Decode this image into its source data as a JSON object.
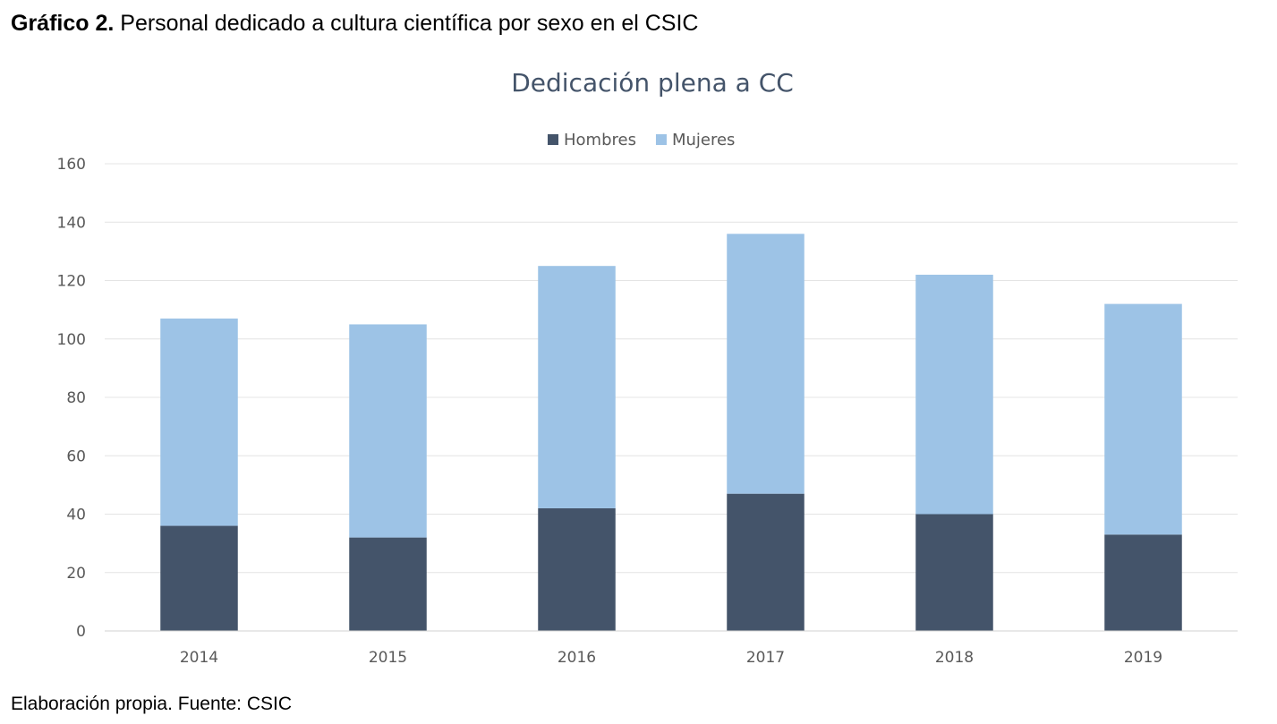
{
  "caption": {
    "label": "Gráfico 2.",
    "text": "Personal dedicado a cultura científica por sexo en el CSIC"
  },
  "source_note": "Elaboración propia. Fuente: CSIC",
  "chart_data": {
    "type": "bar",
    "stacked": true,
    "title": "Dedicación plena a CC",
    "xlabel": "",
    "ylabel": "",
    "categories": [
      "2014",
      "2015",
      "2016",
      "2017",
      "2018",
      "2019"
    ],
    "series": [
      {
        "name": "Hombres",
        "color": "#44546A",
        "values": [
          36,
          32,
          42,
          47,
          40,
          33
        ]
      },
      {
        "name": "Mujeres",
        "color": "#9DC3E6",
        "values": [
          71,
          73,
          83,
          89,
          82,
          79
        ]
      }
    ],
    "ylim": [
      0,
      160
    ],
    "yticks": [
      0,
      20,
      40,
      60,
      80,
      100,
      120,
      140,
      160
    ],
    "grid": true,
    "legend_position": "top"
  }
}
